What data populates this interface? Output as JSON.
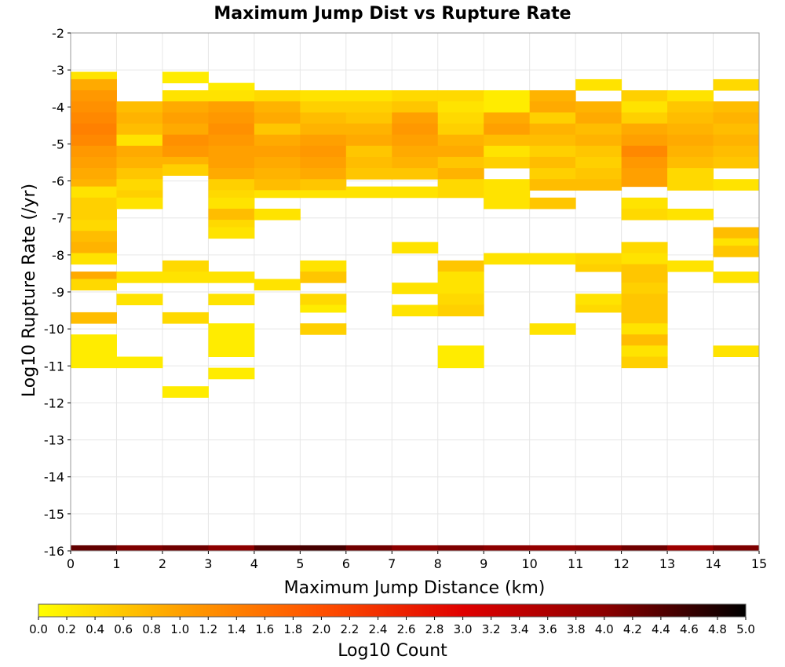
{
  "chart_data": {
    "type": "heatmap",
    "title": "Maximum Jump Dist vs Rupture Rate",
    "xlabel": "Maximum Jump Distance (km)",
    "ylabel": "Log10 Rupture Rate (/yr)",
    "xlim": [
      0,
      15
    ],
    "ylim": [
      -16,
      -2
    ],
    "x_ticks": [
      "0",
      "1",
      "2",
      "3",
      "4",
      "5",
      "6",
      "7",
      "8",
      "9",
      "10",
      "11",
      "12",
      "13",
      "14",
      "15"
    ],
    "y_ticks": [
      "-2",
      "-3",
      "-4",
      "-5",
      "-6",
      "-7",
      "-8",
      "-9",
      "-10",
      "-11",
      "-12",
      "-13",
      "-14",
      "-15",
      "-16"
    ],
    "grid": true,
    "bin_width_x": 1,
    "bin_height_y": 0.1,
    "colorbar": {
      "label": "Log10 Count",
      "range": [
        0,
        5
      ],
      "ticks": [
        "0.0",
        "0.2",
        "0.4",
        "0.6",
        "0.8",
        "1.0",
        "1.2",
        "1.4",
        "1.6",
        "1.8",
        "2.0",
        "2.2",
        "2.4",
        "2.6",
        "2.8",
        "3.0",
        "3.2",
        "3.4",
        "3.6",
        "3.8",
        "4.0",
        "4.2",
        "4.4",
        "4.6",
        "4.8",
        "5.0"
      ],
      "colors": [
        "#ffff00",
        "#ffa000",
        "#ff5000",
        "#e00000",
        "#8c0000",
        "#000000"
      ]
    },
    "cells": [
      [
        0,
        -3.05,
        -3.25,
        0.3
      ],
      [
        0,
        -3.25,
        -3.55,
        0.9
      ],
      [
        0,
        -3.55,
        -3.85,
        1.1
      ],
      [
        0,
        -3.85,
        -4.15,
        1.2
      ],
      [
        0,
        -4.15,
        -4.45,
        1.3
      ],
      [
        0,
        -4.45,
        -4.75,
        1.4
      ],
      [
        0,
        -4.75,
        -5.05,
        1.3
      ],
      [
        0,
        -5.05,
        -5.35,
        1.1
      ],
      [
        0,
        -5.35,
        -5.65,
        1.0
      ],
      [
        0,
        -5.65,
        -5.95,
        0.9
      ],
      [
        0,
        -5.95,
        -6.15,
        0.8
      ],
      [
        0,
        -6.15,
        -6.45,
        0.3
      ],
      [
        0,
        -6.45,
        -6.75,
        0.5
      ],
      [
        0,
        -6.75,
        -7.05,
        0.5
      ],
      [
        0,
        -7.05,
        -7.35,
        0.4
      ],
      [
        0,
        -7.35,
        -7.65,
        0.7
      ],
      [
        0,
        -7.65,
        -7.95,
        0.8
      ],
      [
        0,
        -7.95,
        -8.25,
        0.3
      ],
      [
        0,
        -8.45,
        -8.65,
        0.9
      ],
      [
        0,
        -8.65,
        -8.95,
        0.4
      ],
      [
        0,
        -9.55,
        -9.85,
        0.7
      ],
      [
        0,
        -10.15,
        -11.05,
        0.2
      ],
      [
        1,
        -3.85,
        -4.15,
        0.7
      ],
      [
        1,
        -4.15,
        -4.45,
        0.8
      ],
      [
        1,
        -4.45,
        -4.75,
        0.7
      ],
      [
        1,
        -4.75,
        -5.05,
        0.3
      ],
      [
        1,
        -5.05,
        -5.35,
        0.9
      ],
      [
        1,
        -5.35,
        -5.65,
        0.8
      ],
      [
        1,
        -5.65,
        -5.95,
        0.6
      ],
      [
        1,
        -5.95,
        -6.25,
        0.4
      ],
      [
        1,
        -6.25,
        -6.45,
        0.5
      ],
      [
        1,
        -6.45,
        -6.75,
        0.3
      ],
      [
        1,
        -8.45,
        -8.75,
        0.3
      ],
      [
        1,
        -9.05,
        -9.35,
        0.3
      ],
      [
        1,
        -10.75,
        -11.05,
        0.2
      ],
      [
        2,
        -3.05,
        -3.35,
        0.2
      ],
      [
        2,
        -3.55,
        -3.85,
        0.3
      ],
      [
        2,
        -3.85,
        -4.15,
        0.9
      ],
      [
        2,
        -4.15,
        -4.45,
        1.0
      ],
      [
        2,
        -4.45,
        -4.75,
        0.9
      ],
      [
        2,
        -4.75,
        -5.05,
        1.2
      ],
      [
        2,
        -5.05,
        -5.35,
        1.1
      ],
      [
        2,
        -5.35,
        -5.55,
        0.8
      ],
      [
        2,
        -5.55,
        -5.85,
        0.5
      ],
      [
        2,
        -8.15,
        -8.45,
        0.4
      ],
      [
        2,
        -8.45,
        -8.75,
        0.3
      ],
      [
        2,
        -9.55,
        -9.85,
        0.4
      ],
      [
        2,
        -11.55,
        -11.85,
        0.2
      ],
      [
        3,
        -3.35,
        -3.55,
        0.2
      ],
      [
        3,
        -3.55,
        -3.85,
        0.3
      ],
      [
        3,
        -3.85,
        -4.15,
        1.0
      ],
      [
        3,
        -4.15,
        -4.45,
        1.1
      ],
      [
        3,
        -4.45,
        -4.75,
        1.2
      ],
      [
        3,
        -4.75,
        -5.05,
        1.1
      ],
      [
        3,
        -5.05,
        -5.35,
        1.0
      ],
      [
        3,
        -5.35,
        -5.65,
        1.0
      ],
      [
        3,
        -5.65,
        -5.95,
        0.9
      ],
      [
        3,
        -5.95,
        -6.25,
        0.5
      ],
      [
        3,
        -6.25,
        -6.45,
        0.4
      ],
      [
        3,
        -6.45,
        -6.75,
        0.3
      ],
      [
        3,
        -6.75,
        -7.05,
        0.7
      ],
      [
        3,
        -7.05,
        -7.25,
        0.4
      ],
      [
        3,
        -7.25,
        -7.55,
        0.3
      ],
      [
        3,
        -8.45,
        -8.75,
        0.3
      ],
      [
        3,
        -9.05,
        -9.35,
        0.3
      ],
      [
        3,
        -9.85,
        -10.75,
        0.2
      ],
      [
        3,
        -11.05,
        -11.35,
        0.2
      ],
      [
        4,
        -3.55,
        -3.85,
        0.4
      ],
      [
        4,
        -3.85,
        -4.15,
        0.8
      ],
      [
        4,
        -4.15,
        -4.45,
        0.9
      ],
      [
        4,
        -4.45,
        -4.75,
        0.6
      ],
      [
        4,
        -4.75,
        -5.05,
        0.9
      ],
      [
        4,
        -5.05,
        -5.35,
        1.0
      ],
      [
        4,
        -5.35,
        -5.65,
        0.9
      ],
      [
        4,
        -5.65,
        -5.95,
        0.8
      ],
      [
        4,
        -5.95,
        -6.25,
        0.7
      ],
      [
        4,
        -6.25,
        -6.45,
        0.3
      ],
      [
        4,
        -6.75,
        -7.05,
        0.3
      ],
      [
        4,
        -8.65,
        -8.95,
        0.3
      ],
      [
        5,
        -3.55,
        -3.85,
        0.3
      ],
      [
        5,
        -3.85,
        -4.15,
        0.5
      ],
      [
        5,
        -4.15,
        -4.45,
        0.7
      ],
      [
        5,
        -4.45,
        -4.75,
        0.8
      ],
      [
        5,
        -4.75,
        -5.05,
        1.0
      ],
      [
        5,
        -5.05,
        -5.35,
        1.1
      ],
      [
        5,
        -5.35,
        -5.65,
        1.0
      ],
      [
        5,
        -5.65,
        -5.95,
        0.9
      ],
      [
        5,
        -5.95,
        -6.25,
        0.6
      ],
      [
        5,
        -6.25,
        -6.45,
        0.3
      ],
      [
        5,
        -8.15,
        -8.45,
        0.3
      ],
      [
        5,
        -8.45,
        -8.75,
        0.6
      ],
      [
        5,
        -9.05,
        -9.35,
        0.4
      ],
      [
        5,
        -9.35,
        -9.55,
        0.2
      ],
      [
        5,
        -9.85,
        -10.15,
        0.5
      ],
      [
        6,
        -3.55,
        -3.85,
        0.3
      ],
      [
        6,
        -3.85,
        -4.15,
        0.5
      ],
      [
        6,
        -4.15,
        -4.45,
        0.6
      ],
      [
        6,
        -4.45,
        -4.75,
        0.8
      ],
      [
        6,
        -4.75,
        -5.05,
        0.9
      ],
      [
        6,
        -5.05,
        -5.35,
        0.6
      ],
      [
        6,
        -5.35,
        -5.65,
        0.7
      ],
      [
        6,
        -5.65,
        -5.95,
        0.6
      ],
      [
        6,
        -6.15,
        -6.45,
        0.3
      ],
      [
        7,
        -3.55,
        -3.85,
        0.4
      ],
      [
        7,
        -3.85,
        -4.15,
        0.6
      ],
      [
        7,
        -4.15,
        -4.45,
        1.0
      ],
      [
        7,
        -4.45,
        -4.75,
        1.1
      ],
      [
        7,
        -4.75,
        -5.05,
        1.0
      ],
      [
        7,
        -5.05,
        -5.35,
        0.9
      ],
      [
        7,
        -5.35,
        -5.65,
        0.8
      ],
      [
        7,
        -5.65,
        -5.95,
        0.6
      ],
      [
        7,
        -6.15,
        -6.45,
        0.3
      ],
      [
        7,
        -7.65,
        -7.95,
        0.3
      ],
      [
        7,
        -8.75,
        -9.05,
        0.3
      ],
      [
        7,
        -9.35,
        -9.65,
        0.3
      ],
      [
        8,
        -3.55,
        -3.85,
        0.4
      ],
      [
        8,
        -3.85,
        -4.15,
        0.3
      ],
      [
        8,
        -4.15,
        -4.45,
        0.4
      ],
      [
        8,
        -4.45,
        -4.75,
        0.5
      ],
      [
        8,
        -4.75,
        -5.05,
        0.8
      ],
      [
        8,
        -5.05,
        -5.35,
        0.9
      ],
      [
        8,
        -5.35,
        -5.65,
        0.6
      ],
      [
        8,
        -5.65,
        -5.95,
        0.8
      ],
      [
        8,
        -5.95,
        -6.45,
        0.4
      ],
      [
        8,
        -8.15,
        -8.45,
        0.6
      ],
      [
        8,
        -8.45,
        -9.05,
        0.3
      ],
      [
        8,
        -9.05,
        -9.35,
        0.4
      ],
      [
        8,
        -9.35,
        -9.65,
        0.5
      ],
      [
        8,
        -10.45,
        -11.05,
        0.2
      ],
      [
        9,
        -3.55,
        -3.85,
        0.2
      ],
      [
        9,
        -3.85,
        -4.15,
        0.2
      ],
      [
        9,
        -4.15,
        -4.45,
        0.9
      ],
      [
        9,
        -4.45,
        -4.75,
        1.0
      ],
      [
        9,
        -4.75,
        -5.05,
        0.7
      ],
      [
        9,
        -5.05,
        -5.35,
        0.3
      ],
      [
        9,
        -5.35,
        -5.65,
        0.5
      ],
      [
        9,
        -5.95,
        -6.25,
        0.3
      ],
      [
        9,
        -6.25,
        -6.45,
        0.3
      ],
      [
        9,
        -6.45,
        -6.75,
        0.3
      ],
      [
        9,
        -7.95,
        -8.25,
        0.3
      ],
      [
        10,
        -3.55,
        -3.85,
        0.8
      ],
      [
        10,
        -3.85,
        -4.15,
        0.9
      ],
      [
        10,
        -4.15,
        -4.45,
        0.5
      ],
      [
        10,
        -4.45,
        -4.75,
        0.8
      ],
      [
        10,
        -4.75,
        -5.05,
        0.7
      ],
      [
        10,
        -5.05,
        -5.35,
        0.5
      ],
      [
        10,
        -5.35,
        -5.65,
        0.7
      ],
      [
        10,
        -5.65,
        -5.95,
        0.5
      ],
      [
        10,
        -5.95,
        -6.25,
        0.7
      ],
      [
        10,
        -6.45,
        -6.75,
        0.6
      ],
      [
        10,
        -7.95,
        -8.25,
        0.3
      ],
      [
        10,
        -9.85,
        -10.15,
        0.3
      ],
      [
        11,
        -3.25,
        -3.55,
        0.3
      ],
      [
        11,
        -3.85,
        -4.15,
        0.8
      ],
      [
        11,
        -4.15,
        -4.45,
        0.9
      ],
      [
        11,
        -4.45,
        -4.75,
        0.7
      ],
      [
        11,
        -4.75,
        -5.05,
        0.8
      ],
      [
        11,
        -5.05,
        -5.35,
        0.6
      ],
      [
        11,
        -5.35,
        -5.65,
        0.5
      ],
      [
        11,
        -5.65,
        -5.95,
        0.6
      ],
      [
        11,
        -5.95,
        -6.25,
        0.7
      ],
      [
        11,
        -7.95,
        -8.25,
        0.4
      ],
      [
        11,
        -8.25,
        -8.45,
        0.5
      ],
      [
        11,
        -9.05,
        -9.35,
        0.3
      ],
      [
        11,
        -9.35,
        -9.55,
        0.4
      ],
      [
        12,
        -3.55,
        -3.85,
        0.5
      ],
      [
        12,
        -3.85,
        -4.15,
        0.3
      ],
      [
        12,
        -4.15,
        -4.45,
        0.5
      ],
      [
        12,
        -4.45,
        -4.75,
        0.9
      ],
      [
        12,
        -4.75,
        -5.05,
        1.0
      ],
      [
        12,
        -5.05,
        -5.35,
        1.3
      ],
      [
        12,
        -5.35,
        -5.65,
        1.1
      ],
      [
        12,
        -5.65,
        -5.95,
        1.0
      ],
      [
        12,
        -5.95,
        -6.15,
        1.0
      ],
      [
        12,
        -6.45,
        -6.75,
        0.3
      ],
      [
        12,
        -6.75,
        -7.05,
        0.4
      ],
      [
        12,
        -7.65,
        -7.95,
        0.4
      ],
      [
        12,
        -7.95,
        -8.25,
        0.3
      ],
      [
        12,
        -8.25,
        -8.75,
        0.6
      ],
      [
        12,
        -8.75,
        -9.05,
        0.5
      ],
      [
        12,
        -9.05,
        -9.85,
        0.6
      ],
      [
        12,
        -9.85,
        -10.15,
        0.3
      ],
      [
        12,
        -10.15,
        -10.45,
        0.7
      ],
      [
        12,
        -10.45,
        -10.75,
        0.3
      ],
      [
        12,
        -10.75,
        -11.05,
        0.5
      ],
      [
        13,
        -3.55,
        -3.85,
        0.3
      ],
      [
        13,
        -3.85,
        -4.15,
        0.6
      ],
      [
        13,
        -4.15,
        -4.45,
        0.7
      ],
      [
        13,
        -4.45,
        -4.75,
        0.8
      ],
      [
        13,
        -4.75,
        -5.05,
        0.9
      ],
      [
        13,
        -5.05,
        -5.35,
        0.8
      ],
      [
        13,
        -5.35,
        -5.65,
        0.7
      ],
      [
        13,
        -5.65,
        -5.95,
        0.4
      ],
      [
        13,
        -5.95,
        -6.25,
        0.4
      ],
      [
        13,
        -6.75,
        -7.05,
        0.3
      ],
      [
        13,
        -8.15,
        -8.45,
        0.3
      ],
      [
        14,
        -3.25,
        -3.55,
        0.4
      ],
      [
        14,
        -3.85,
        -4.15,
        0.7
      ],
      [
        14,
        -4.15,
        -4.45,
        0.8
      ],
      [
        14,
        -4.45,
        -4.75,
        0.7
      ],
      [
        14,
        -4.75,
        -5.05,
        0.8
      ],
      [
        14,
        -5.05,
        -5.35,
        0.7
      ],
      [
        14,
        -5.35,
        -5.65,
        0.6
      ],
      [
        14,
        -5.95,
        -6.25,
        0.3
      ],
      [
        14,
        -7.25,
        -7.55,
        0.7
      ],
      [
        14,
        -7.55,
        -7.75,
        0.3
      ],
      [
        14,
        -7.75,
        -8.05,
        0.6
      ],
      [
        14,
        -8.45,
        -8.75,
        0.3
      ],
      [
        14,
        -10.45,
        -10.75,
        0.3
      ]
    ],
    "bottom_row": {
      "y_from": -15.85,
      "y_to": -16.0,
      "values": [
        4.3,
        4.1,
        4.2,
        4.0,
        4.4,
        4.5,
        4.2,
        4.0,
        4.1,
        4.0,
        3.9,
        4.0,
        4.2,
        3.8,
        4.1
      ]
    }
  }
}
